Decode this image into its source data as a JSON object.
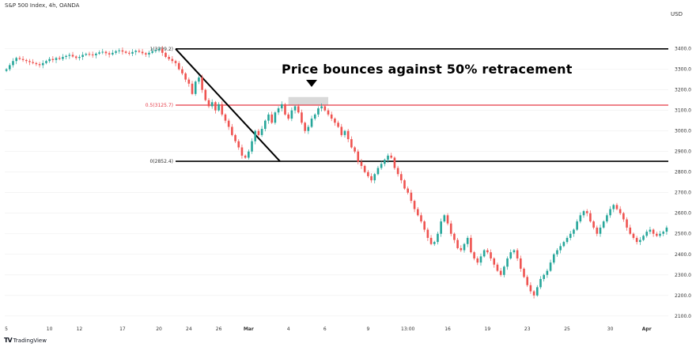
{
  "header": {
    "title": "S&P 500 Index, 4h, OANDA",
    "currency": "USD"
  },
  "annotation": {
    "text": "Price bounces against 50% retracement"
  },
  "branding": {
    "logo_text": "TradingView",
    "logo_mark": "TV"
  },
  "colors": {
    "up": "#26a69a",
    "down": "#ef5350",
    "fib_mid": "#e53945",
    "fib_line": "#000000",
    "highlight": "#cfcfcf",
    "marker": "#000000",
    "grid": "#eeeeee"
  },
  "chart_data": {
    "type": "candlestick",
    "symbol": "S&P 500 Index",
    "timeframe": "4h",
    "ylim": [
      2080,
      3560
    ],
    "y_ticks": [
      2100,
      2200,
      2300,
      2400,
      2500,
      2600,
      2700,
      2800,
      2900,
      3000,
      3100,
      3200,
      3300,
      3400
    ],
    "y_tick_labels": [
      "2100.0",
      "2200.0",
      "2300.0",
      "2400.0",
      "2500.0",
      "2600.0",
      "2700.0",
      "2800.0",
      "2900.0",
      "3000.0",
      "3100.0",
      "3200.0",
      "3300.0",
      "3400.0"
    ],
    "x_ticks": [
      {
        "label": "5",
        "index": 0
      },
      {
        "label": "10",
        "index": 13
      },
      {
        "label": "12",
        "index": 22
      },
      {
        "label": "17",
        "index": 35
      },
      {
        "label": "20",
        "index": 46
      },
      {
        "label": "24",
        "index": 55
      },
      {
        "label": "26",
        "index": 64
      },
      {
        "label": "Mar",
        "index": 73
      },
      {
        "label": "4",
        "index": 85
      },
      {
        "label": "6",
        "index": 96
      },
      {
        "label": "9",
        "index": 109
      },
      {
        "label": "13:00",
        "index": 121
      },
      {
        "label": "16",
        "index": 133
      },
      {
        "label": "19",
        "index": 145
      },
      {
        "label": "23",
        "index": 157
      },
      {
        "label": "25",
        "index": 169
      },
      {
        "label": "30",
        "index": 182
      },
      {
        "label": "Apr",
        "index": 193
      }
    ],
    "fib_levels": [
      {
        "label": "1(3399.2)",
        "value": 3399.2
      },
      {
        "label": "0.5(3125.7)",
        "value": 3125.7
      },
      {
        "label": "0(2852.4)",
        "value": 2852.4
      }
    ],
    "trendline": {
      "from_index": 46,
      "from_value": 3399.2,
      "to_index": 76,
      "to_value": 2852.4
    },
    "highlight_box": {
      "from_index": 85,
      "to_index": 97,
      "top": 3165,
      "bottom": 3125.7
    },
    "marker_index": 91,
    "closes": [
      3300,
      3320,
      3340,
      3355,
      3350,
      3345,
      3340,
      3335,
      3330,
      3325,
      3320,
      3330,
      3340,
      3350,
      3345,
      3355,
      3350,
      3360,
      3365,
      3370,
      3362,
      3355,
      3360,
      3370,
      3375,
      3372,
      3368,
      3376,
      3382,
      3385,
      3378,
      3372,
      3380,
      3388,
      3392,
      3386,
      3380,
      3376,
      3384,
      3390,
      3385,
      3378,
      3372,
      3380,
      3388,
      3394,
      3399,
      3380,
      3360,
      3350,
      3340,
      3330,
      3300,
      3280,
      3250,
      3230,
      3180,
      3240,
      3260,
      3200,
      3150,
      3120,
      3140,
      3100,
      3130,
      3080,
      3050,
      3020,
      2980,
      2950,
      2920,
      2880,
      2870,
      2900,
      2950,
      3000,
      2980,
      3010,
      3050,
      3080,
      3040,
      3090,
      3110,
      3130,
      3080,
      3060,
      3100,
      3120,
      3090,
      3040,
      3000,
      3020,
      3060,
      3080,
      3110,
      3120,
      3100,
      3080,
      3060,
      3040,
      3020,
      2980,
      3000,
      2960,
      2920,
      2900,
      2850,
      2830,
      2800,
      2780,
      2760,
      2790,
      2820,
      2840,
      2860,
      2880,
      2870,
      2820,
      2790,
      2760,
      2720,
      2700,
      2660,
      2620,
      2590,
      2560,
      2520,
      2480,
      2450,
      2460,
      2500,
      2560,
      2590,
      2550,
      2500,
      2470,
      2430,
      2420,
      2450,
      2480,
      2410,
      2380,
      2360,
      2390,
      2420,
      2410,
      2380,
      2350,
      2320,
      2300,
      2340,
      2380,
      2410,
      2420,
      2380,
      2330,
      2290,
      2250,
      2220,
      2200,
      2240,
      2280,
      2300,
      2320,
      2360,
      2400,
      2420,
      2440,
      2460,
      2480,
      2500,
      2520,
      2560,
      2590,
      2610,
      2600,
      2560,
      2530,
      2500,
      2530,
      2560,
      2590,
      2620,
      2640,
      2620,
      2600,
      2570,
      2530,
      2500,
      2480,
      2460,
      2470,
      2490,
      2510,
      2520,
      2500,
      2490,
      2500,
      2510,
      2530
    ]
  }
}
